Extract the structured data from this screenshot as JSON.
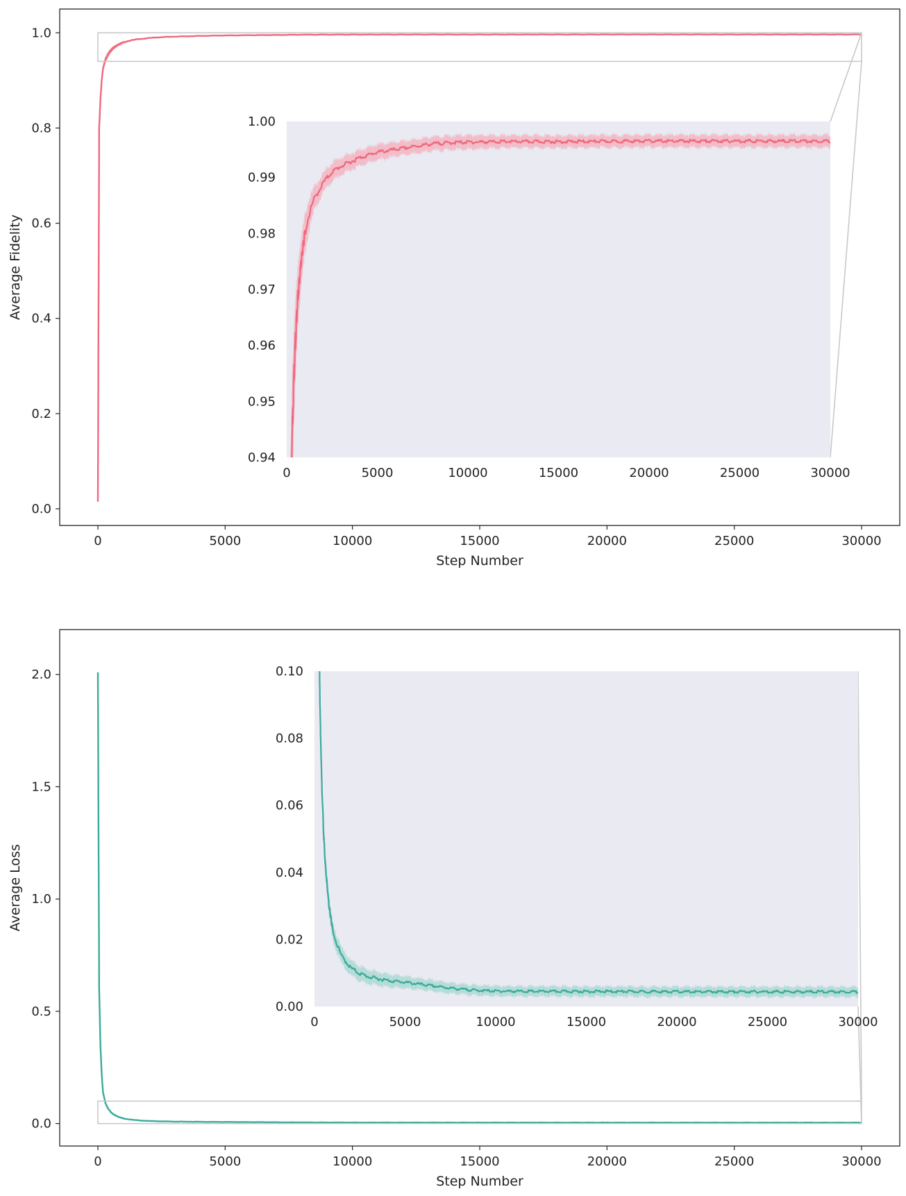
{
  "chart_data": [
    {
      "type": "line",
      "id": "fidelity",
      "title": "",
      "xlabel": "Step Number",
      "ylabel": "Average Fidelity",
      "xlim": [
        -1500,
        31500
      ],
      "ylim": [
        -0.035,
        1.05
      ],
      "xticks": [
        0,
        5000,
        10000,
        15000,
        20000,
        25000,
        30000
      ],
      "xtick_labels": [
        "0",
        "5000",
        "10000",
        "15000",
        "20000",
        "25000",
        "30000"
      ],
      "yticks": [
        0.0,
        0.2,
        0.4,
        0.6,
        0.8,
        1.0
      ],
      "ytick_labels": [
        "0.0",
        "0.2",
        "0.4",
        "0.6",
        "0.8",
        "1.0"
      ],
      "grid": false,
      "colors": {
        "line": "#f0677d",
        "band": "#f4a9b6",
        "inset_bg": "#eaeaf2",
        "zoom_box": "#c8c8c8"
      },
      "series": [
        {
          "x": [
            0,
            50,
            100,
            150,
            200,
            300,
            400,
            500,
            600,
            800,
            1000,
            1200,
            1500,
            2000,
            2500,
            3000,
            4000,
            5000,
            6000,
            7000,
            8000,
            9000,
            10000,
            12000,
            15000,
            20000,
            25000,
            30000
          ],
          "y": [
            0.015,
            0.8,
            0.86,
            0.9,
            0.925,
            0.944,
            0.955,
            0.962,
            0.968,
            0.975,
            0.98,
            0.983,
            0.986,
            0.989,
            0.991,
            0.992,
            0.9935,
            0.9945,
            0.995,
            0.9955,
            0.996,
            0.9962,
            0.9963,
            0.9964,
            0.9964,
            0.9965,
            0.9965,
            0.9965
          ],
          "band": [
            0.0,
            0.02,
            0.015,
            0.012,
            0.01,
            0.008,
            0.006,
            0.005,
            0.004,
            0.003,
            0.0025,
            0.002,
            0.0015,
            0.0012,
            0.0012,
            0.0011,
            0.001,
            0.001,
            0.0009,
            0.0009,
            0.0009,
            0.0009,
            0.0009,
            0.0008,
            0.0008,
            0.0008,
            0.0008,
            0.0008
          ]
        }
      ],
      "zoom_region": {
        "x": [
          0,
          30000
        ],
        "y": [
          0.94,
          1.0
        ]
      },
      "inset": {
        "xlim": [
          0,
          30000
        ],
        "ylim": [
          0.94,
          1.0
        ],
        "xticks": [
          0,
          5000,
          10000,
          15000,
          20000,
          25000,
          30000
        ],
        "xtick_labels": [
          "0",
          "5000",
          "10000",
          "15000",
          "20000",
          "25000",
          "30000"
        ],
        "yticks": [
          0.94,
          0.95,
          0.96,
          0.97,
          0.98,
          0.99,
          1.0
        ],
        "ytick_labels": [
          "0.94",
          "0.95",
          "0.96",
          "0.97",
          "0.98",
          "0.99",
          "1.00"
        ]
      }
    },
    {
      "type": "line",
      "id": "loss",
      "title": "",
      "xlabel": "Step Number",
      "ylabel": "Average Loss",
      "xlim": [
        -1500,
        31500
      ],
      "ylim": [
        -0.1,
        2.2
      ],
      "xticks": [
        0,
        5000,
        10000,
        15000,
        20000,
        25000,
        30000
      ],
      "xtick_labels": [
        "0",
        "5000",
        "10000",
        "15000",
        "20000",
        "25000",
        "30000"
      ],
      "yticks": [
        0.0,
        0.5,
        1.0,
        1.5,
        2.0
      ],
      "ytick_labels": [
        "0.0",
        "0.5",
        "1.0",
        "1.5",
        "2.0"
      ],
      "grid": false,
      "colors": {
        "line": "#3aaa9b",
        "band": "#9fd6cd",
        "inset_bg": "#eaeaf2",
        "zoom_box": "#c8c8c8"
      },
      "series": [
        {
          "x": [
            0,
            50,
            100,
            150,
            200,
            300,
            400,
            500,
            600,
            800,
            1000,
            1200,
            1500,
            2000,
            2500,
            3000,
            4000,
            5000,
            6000,
            7000,
            8000,
            9000,
            10000,
            12000,
            15000,
            20000,
            25000,
            30000
          ],
          "y": [
            2.01,
            0.6,
            0.35,
            0.22,
            0.14,
            0.09,
            0.067,
            0.052,
            0.042,
            0.03,
            0.023,
            0.019,
            0.015,
            0.0115,
            0.0098,
            0.0088,
            0.0078,
            0.0072,
            0.0065,
            0.0058,
            0.0052,
            0.0048,
            0.0046,
            0.0045,
            0.0045,
            0.0044,
            0.0044,
            0.0044
          ],
          "band": [
            0.0,
            0.01,
            0.008,
            0.006,
            0.005,
            0.004,
            0.003,
            0.003,
            0.0025,
            0.002,
            0.002,
            0.0018,
            0.0017,
            0.0016,
            0.0016,
            0.0015,
            0.0014,
            0.0013,
            0.0012,
            0.0012,
            0.0011,
            0.0011,
            0.0011,
            0.0011,
            0.0011,
            0.0011,
            0.0011,
            0.0011
          ]
        }
      ],
      "zoom_region": {
        "x": [
          0,
          30000
        ],
        "y": [
          0.0,
          0.1
        ]
      },
      "inset": {
        "xlim": [
          0,
          30000
        ],
        "ylim": [
          0.0,
          0.1
        ],
        "xticks": [
          0,
          5000,
          10000,
          15000,
          20000,
          25000,
          30000
        ],
        "xtick_labels": [
          "0",
          "5000",
          "10000",
          "15000",
          "20000",
          "25000",
          "30000"
        ],
        "yticks": [
          0.0,
          0.02,
          0.04,
          0.06,
          0.08,
          0.1
        ],
        "ytick_labels": [
          "0.00",
          "0.02",
          "0.04",
          "0.06",
          "0.08",
          "0.10"
        ]
      }
    }
  ]
}
